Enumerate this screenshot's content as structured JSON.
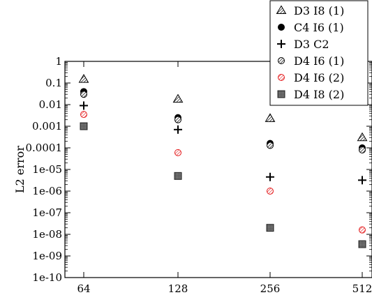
{
  "chart_data": {
    "type": "scatter",
    "title": "",
    "xlabel": "",
    "ylabel": "L2 error",
    "yscale": "log",
    "ylim": [
      1e-10,
      1
    ],
    "x_categories": [
      "64",
      "128",
      "256",
      "512"
    ],
    "y_tick_labels": [
      "1",
      "0.1",
      "0.01",
      "0.001",
      "0.0001",
      "1e-05",
      "1e-06",
      "1e-07",
      "1e-08",
      "1e-09",
      "1e-10"
    ],
    "grid": false,
    "legend_position": "top-right",
    "series": [
      {
        "name": "D3 I8 (1)",
        "marker": "hatched-triangle",
        "color": "#000000",
        "values": [
          0.15,
          0.018,
          0.0023,
          0.0003
        ]
      },
      {
        "name": "C4 I6 (1)",
        "marker": "filled-circle",
        "color": "#000000",
        "values": [
          0.04,
          0.0025,
          0.00016,
          0.0001
        ]
      },
      {
        "name": "D3 C2",
        "marker": "plus",
        "color": "#000000",
        "values": [
          0.009,
          0.0007,
          4.5e-06,
          3.2e-06
        ]
      },
      {
        "name": "D4 I6 (1)",
        "marker": "hatched-circle",
        "color": "#000000",
        "values": [
          0.03,
          0.002,
          0.00013,
          8e-05
        ]
      },
      {
        "name": "D4 I6 (2)",
        "marker": "hatched-circle",
        "color": "#e41a1c",
        "values": [
          0.0035,
          6e-05,
          1e-06,
          1.6e-08
        ]
      },
      {
        "name": "D4 I8 (2)",
        "marker": "hatched-square",
        "color": "#333333",
        "values": [
          0.001,
          5e-06,
          2e-08,
          3.5e-09
        ]
      }
    ]
  }
}
